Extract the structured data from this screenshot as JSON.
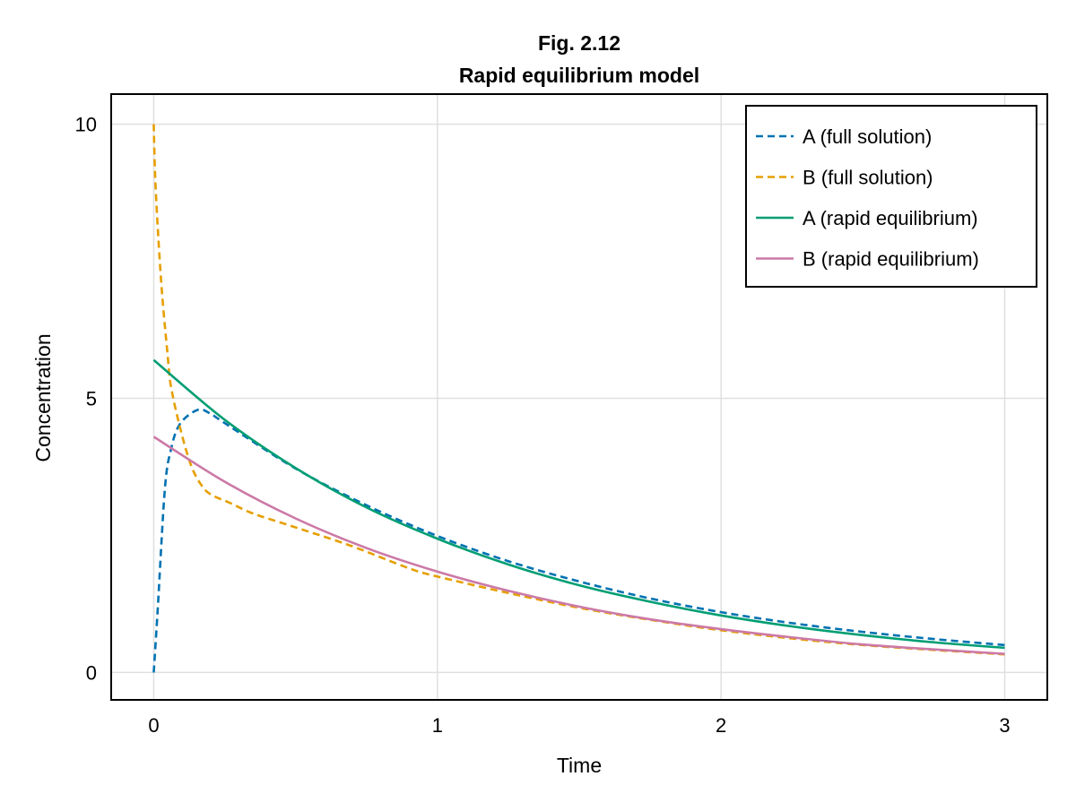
{
  "chart_data": {
    "type": "line",
    "title": "Fig. 2.12",
    "subtitle": "Rapid equilibrium model",
    "xlabel": "Time",
    "ylabel": "Concentration",
    "xlim": [
      -0.15,
      3.15
    ],
    "ylim": [
      -0.5,
      10.55
    ],
    "xticks": [
      0,
      1,
      2,
      3
    ],
    "yticks": [
      0,
      5,
      10
    ],
    "xtick_labels": [
      "0",
      "1",
      "2",
      "3"
    ],
    "ytick_labels": [
      "0",
      "5",
      "10"
    ],
    "grid": true,
    "legend_position": "top-right",
    "series": [
      {
        "name": "A (full solution)",
        "style": "dashed",
        "color": "#0072b2",
        "x": [
          0,
          0.014,
          0.039,
          0.06,
          0.092,
          0.155,
          0.2,
          0.25,
          0.5,
          0.75,
          1,
          1.25,
          1.5,
          1.75,
          2,
          2.25,
          2.5,
          2.75,
          3
        ],
        "y": [
          0,
          1.15,
          3.33,
          4.05,
          4.53,
          4.79,
          4.72,
          4.55,
          3.72,
          3.05,
          2.49,
          2.03,
          1.66,
          1.35,
          1.1,
          0.9,
          0.74,
          0.61,
          0.5
        ]
      },
      {
        "name": "B (full solution)",
        "style": "dashed",
        "color": "#e69f00",
        "x": [
          0,
          0.005,
          0.016,
          0.03,
          0.049,
          0.06,
          0.092,
          0.13,
          0.165,
          0.2,
          0.27,
          0.35,
          0.48,
          0.69,
          0.9,
          1,
          1.25,
          1.5,
          1.75,
          2,
          2.25,
          2.5,
          2.75,
          3
        ],
        "y": [
          10,
          9.05,
          7.95,
          6.87,
          5.79,
          5.24,
          4.48,
          3.8,
          3.44,
          3.25,
          3.09,
          2.9,
          2.68,
          2.32,
          1.9,
          1.75,
          1.45,
          1.18,
          0.96,
          0.77,
          0.62,
          0.5,
          0.41,
          0.33
        ]
      },
      {
        "name": "A (rapid equilibrium)",
        "style": "solid",
        "color": "#009e73",
        "x": [
          0,
          0.25,
          0.5,
          0.75,
          1,
          1.25,
          1.5,
          1.75,
          2,
          2.25,
          2.5,
          2.75,
          3
        ],
        "y": [
          5.7,
          4.61,
          3.73,
          3.01,
          2.44,
          1.97,
          1.59,
          1.29,
          1.04,
          0.84,
          0.68,
          0.55,
          0.45
        ]
      },
      {
        "name": "B (rapid equilibrium)",
        "style": "solid",
        "color": "#cc79a7",
        "x": [
          0,
          0.25,
          0.5,
          0.75,
          1,
          1.25,
          1.5,
          1.75,
          2,
          2.25,
          2.5,
          2.75,
          3
        ],
        "y": [
          4.3,
          3.48,
          2.81,
          2.27,
          1.84,
          1.49,
          1.2,
          0.97,
          0.79,
          0.64,
          0.51,
          0.42,
          0.34
        ]
      }
    ]
  }
}
